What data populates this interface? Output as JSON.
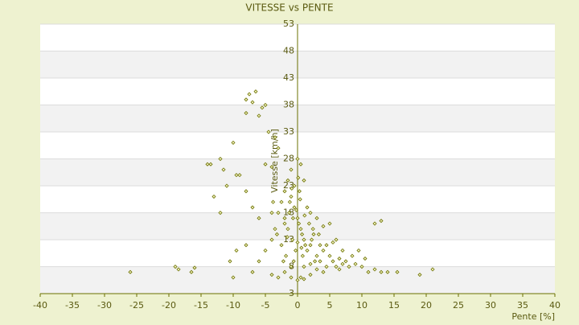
{
  "chart_data": {
    "type": "scatter",
    "title": "VITESSE vs PENTE",
    "x_label": "Pente [%]",
    "y_label": "Vitesse [km/h]",
    "color": "#6b7000",
    "x": [
      -26,
      -19,
      -18.5,
      -16.5,
      -16,
      -14,
      -13.5,
      -13,
      -12,
      -11.5,
      -12,
      -11,
      -10,
      -9.5,
      -8,
      -7.5,
      -6.5,
      -7,
      -5.5,
      -5,
      -8,
      -6,
      -4.5,
      -3.5,
      -3,
      -5,
      -4,
      -9,
      -8,
      -7,
      -6,
      -9.5,
      -8,
      -10.5,
      -10,
      -7,
      -6,
      -5,
      -4,
      -3.5,
      -3,
      -2.5,
      -2,
      -1.5,
      -1,
      -0.5,
      0,
      0.5,
      1,
      1.5,
      2,
      2.5,
      3,
      3.5,
      4,
      4.5,
      5,
      5.5,
      6,
      6.5,
      7,
      7.5,
      8,
      9,
      10,
      11,
      12,
      13,
      14,
      15.5,
      19,
      21,
      12,
      13,
      -2,
      -1,
      0,
      0.5,
      1,
      2,
      -3,
      -4,
      0,
      0.5,
      -1,
      1,
      -0.5,
      0.3,
      -1.2,
      1.5,
      2,
      -2,
      3,
      -1.5,
      0.7,
      -0.8,
      2.2,
      -2.5,
      1.2,
      -0.3,
      3.5,
      -1.8,
      0.8,
      2.7,
      -0.6,
      4.5,
      5.5,
      6,
      -3.2,
      -2,
      -0.2,
      1.8,
      0.4,
      -0.9,
      0.1,
      -1.3,
      2.4,
      3.3,
      4,
      -4,
      -3.8,
      1,
      2,
      3,
      -1,
      -2.2,
      0,
      0.2,
      -0.7,
      1.1,
      -1.6,
      0.6,
      5,
      7,
      8.5,
      9.5,
      6.5,
      4,
      10.5
    ],
    "values": [
      7,
      8,
      7.5,
      7,
      7.8,
      27,
      27,
      21,
      28,
      26,
      18,
      23,
      31,
      25,
      39,
      40,
      40.5,
      38.5,
      37.5,
      38,
      36.5,
      36,
      33,
      32,
      30,
      27,
      26.5,
      25,
      22,
      19,
      17,
      11,
      12,
      9,
      6,
      7,
      9,
      11,
      13,
      15,
      18,
      20,
      22,
      24,
      21,
      19,
      17,
      15,
      13,
      11,
      12,
      14,
      10,
      9,
      11,
      8,
      10,
      9,
      8,
      9.5,
      8.5,
      9,
      8,
      8.5,
      8,
      7,
      7.5,
      7,
      7,
      7,
      6.5,
      7.5,
      16,
      16.5,
      7,
      6,
      5.5,
      6,
      5.7,
      6.5,
      6,
      6.5,
      28,
      27,
      26,
      24,
      23,
      22,
      20,
      19,
      18,
      17,
      17,
      15,
      14,
      13,
      13,
      12,
      12,
      11,
      12,
      10,
      10,
      9,
      9,
      12,
      12.5,
      13,
      14,
      16,
      18.5,
      16,
      20.5,
      22.5,
      24.5,
      18,
      15,
      14,
      15.5,
      18,
      20,
      8,
      8.5,
      7.5,
      8,
      9,
      12.5,
      16,
      17,
      17.5,
      13.5,
      11.5,
      16,
      11,
      10,
      11,
      7.5,
      7,
      9.5
    ],
    "xlim": [
      -40,
      40
    ],
    "xticks": [
      -40,
      -35,
      -30,
      -25,
      -20,
      -15,
      -10,
      -5,
      0,
      5,
      10,
      15,
      20,
      25,
      30,
      35,
      40
    ],
    "ylim": [
      3,
      53
    ],
    "yticks": [
      3,
      8,
      13,
      18,
      23,
      28,
      33,
      38,
      43,
      48,
      53
    ],
    "grid": true
  }
}
